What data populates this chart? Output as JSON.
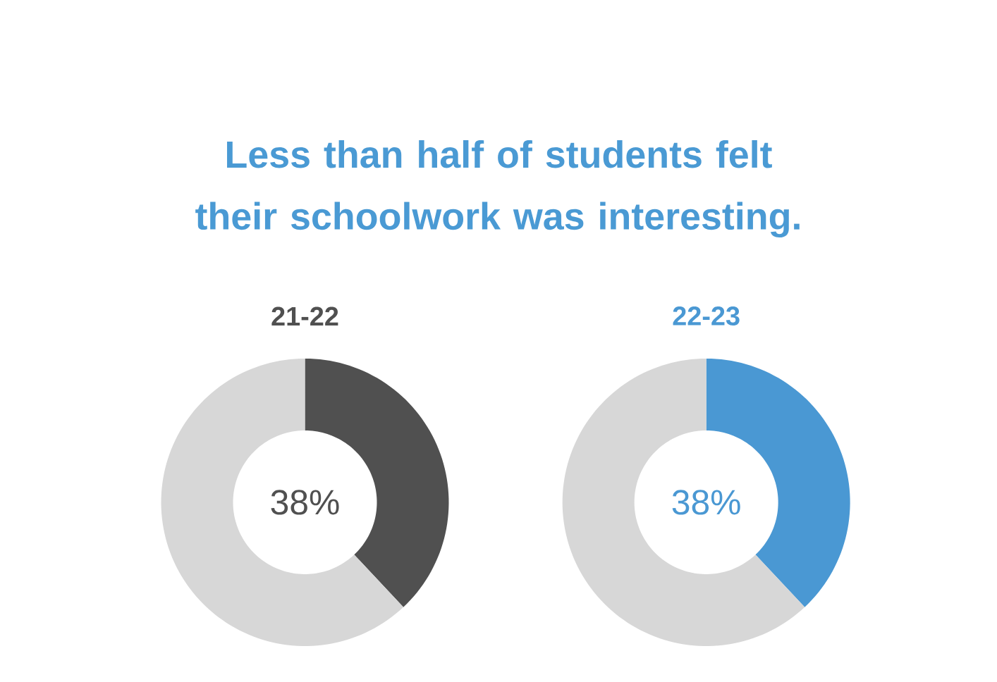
{
  "chart_data": [
    {
      "type": "other",
      "title": "Less than half of students felt their schoolwork was interesting.",
      "color": "#4a9ad4"
    },
    {
      "type": "donut",
      "title": "21-22",
      "categories": [
        null,
        null
      ],
      "values": [
        38,
        62
      ],
      "colors": [
        "#505050",
        "#d7d7d7"
      ],
      "value_labels": [
        "38%",
        null
      ]
    },
    {
      "type": "donut",
      "title": "22-23",
      "categories": [
        null,
        null
      ],
      "values": [
        38,
        62
      ],
      "colors": [
        "#4a98d3",
        "#d7d7d7"
      ],
      "value_labels": [
        "38%",
        null
      ]
    }
  ]
}
